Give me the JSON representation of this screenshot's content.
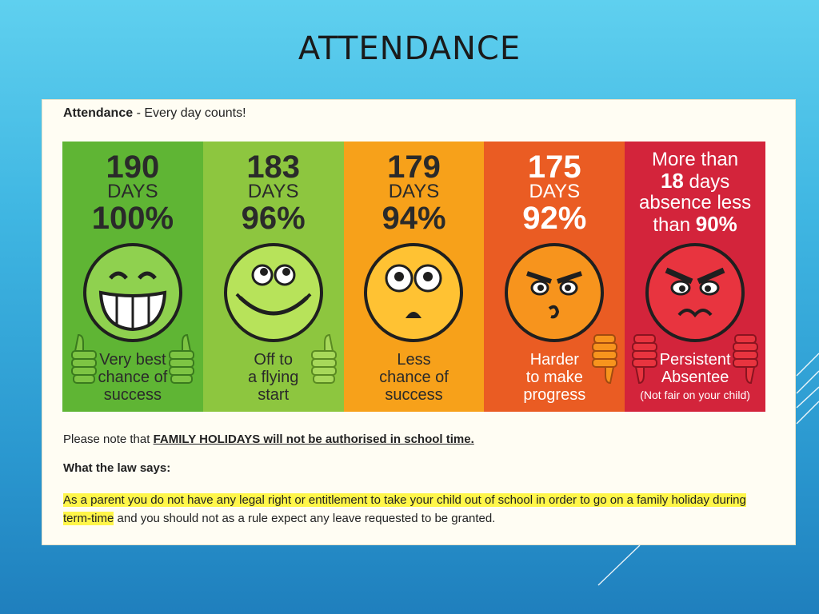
{
  "slide": {
    "title": "ATTENDANCE"
  },
  "panel": {
    "heading_bold": "Attendance",
    "heading_rest": " - Every day counts!",
    "cards": [
      {
        "number": "190",
        "days_label": "DAYS",
        "percent": "100%",
        "caption_lines": [
          "Very best",
          "chance of",
          "success"
        ],
        "face": "big-grin-face",
        "thumb": "thumbs-up"
      },
      {
        "number": "183",
        "days_label": "DAYS",
        "percent": "96%",
        "caption_lines": [
          "Off to",
          "a flying",
          "start"
        ],
        "face": "happy-face",
        "thumb": "thumbs-up"
      },
      {
        "number": "179",
        "days_label": "DAYS",
        "percent": "94%",
        "caption_lines": [
          "Less",
          "chance of",
          "success"
        ],
        "face": "worried-face",
        "thumb": "none"
      },
      {
        "number": "175",
        "days_label": "DAYS",
        "percent": "92%",
        "caption_lines": [
          "Harder",
          "to make",
          "progress"
        ],
        "face": "angry-face",
        "thumb": "thumbs-down"
      },
      {
        "top_lines": [
          "More than",
          "18",
          " days",
          "absence less",
          "than ",
          "90%"
        ],
        "caption_lines": [
          "Persistent",
          "Absentee"
        ],
        "subcaption": "(Not fair on your child)",
        "face": "furious-face",
        "thumb": "thumbs-down"
      }
    ],
    "note_prefix": "Please note that ",
    "note_bold": "FAMILY HOLIDAYS will not be authorised in school time.",
    "law_title": "What the law says:",
    "law_highlight": "As a parent you do not have any legal right or entitlement to take your child out of school in order to go on a family holiday during term-time",
    "law_rest": " and you should not as a rule expect any leave requested to be granted."
  },
  "colors": {
    "green": "#5fb534",
    "lime": "#8dc63f",
    "orange": "#f7a11a",
    "dark_orange": "#ea5c23",
    "red": "#d3243b",
    "highlight": "#fff64a"
  }
}
